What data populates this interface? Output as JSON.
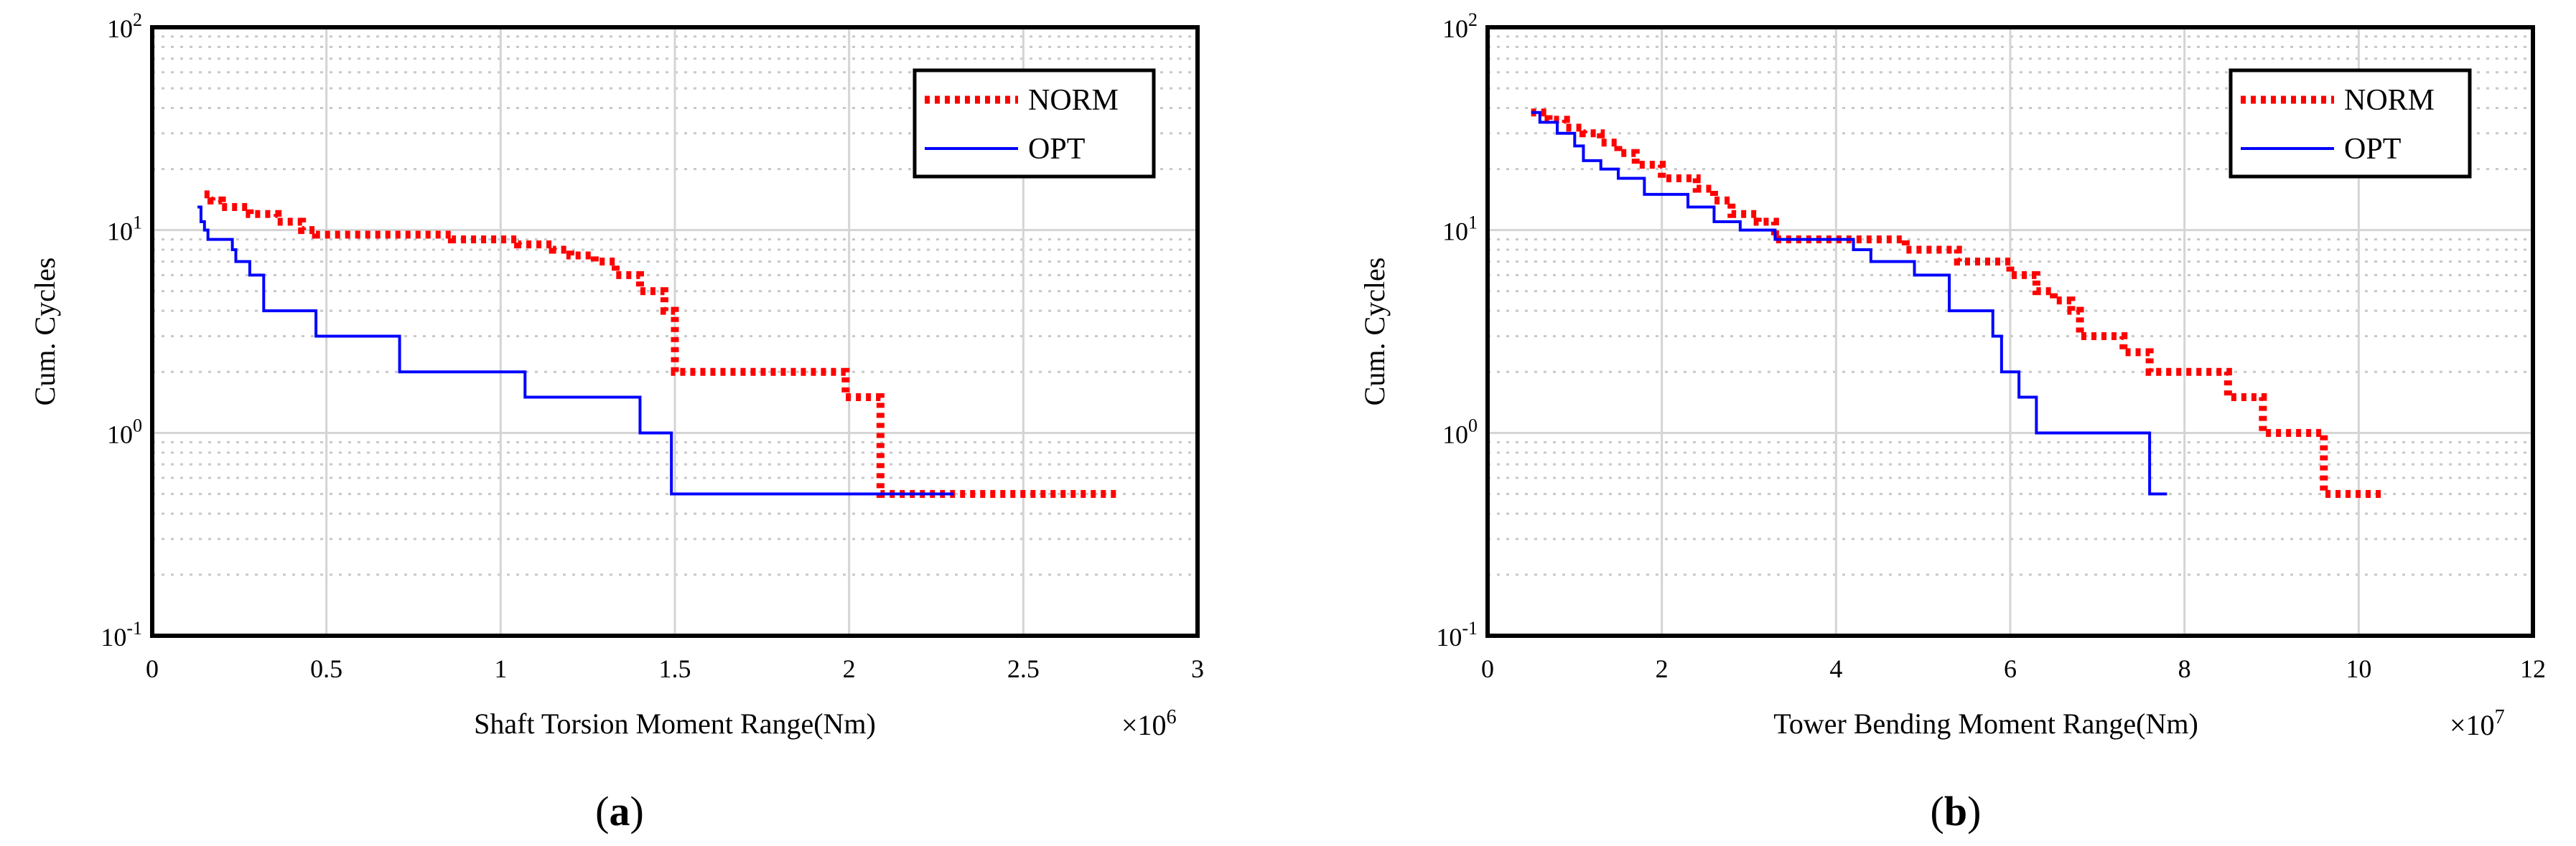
{
  "chart_data": [
    {
      "id": "a",
      "type": "line",
      "title": "",
      "xlabel": "Shaft Torsion Moment Range(Nm)",
      "ylabel": "Cum. Cycles",
      "x_multiplier_label": "×10",
      "x_multiplier_exp": "6",
      "y_scale": "log",
      "xlim": [
        0,
        3
      ],
      "ylim": [
        0.1,
        100
      ],
      "x_ticks": [
        {
          "value": 0,
          "label": "0"
        },
        {
          "value": 0.5,
          "label": "0.5"
        },
        {
          "value": 1,
          "label": "1"
        },
        {
          "value": 1.5,
          "label": "1.5"
        },
        {
          "value": 2,
          "label": "2"
        },
        {
          "value": 2.5,
          "label": "2.5"
        },
        {
          "value": 3,
          "label": "3"
        }
      ],
      "y_ticks": [
        {
          "value": 0.1,
          "base": "10",
          "exp": "-1"
        },
        {
          "value": 1,
          "base": "10",
          "exp": "0"
        },
        {
          "value": 10,
          "base": "10",
          "exp": "1"
        },
        {
          "value": 100,
          "base": "10",
          "exp": "2"
        }
      ],
      "legend_position": "top-right",
      "caption": "a",
      "series": [
        {
          "name": "NORM",
          "color": "#ff0000",
          "style": "dotted",
          "points": [
            [
              0.15,
              15
            ],
            [
              0.17,
              14
            ],
            [
              0.2,
              13
            ],
            [
              0.28,
              12
            ],
            [
              0.36,
              11
            ],
            [
              0.43,
              10
            ],
            [
              0.47,
              9.5
            ],
            [
              0.86,
              9
            ],
            [
              1.05,
              8.5
            ],
            [
              1.15,
              8
            ],
            [
              1.2,
              7.5
            ],
            [
              1.27,
              7
            ],
            [
              1.33,
              6
            ],
            [
              1.4,
              5
            ],
            [
              1.47,
              4
            ],
            [
              1.5,
              2
            ],
            [
              1.99,
              1.5
            ],
            [
              2.09,
              0.5
            ],
            [
              2.77,
              0.5
            ]
          ]
        },
        {
          "name": "OPT",
          "color": "#0000ff",
          "style": "solid",
          "points": [
            [
              0.13,
              13
            ],
            [
              0.14,
              11
            ],
            [
              0.15,
              10
            ],
            [
              0.16,
              9
            ],
            [
              0.23,
              8
            ],
            [
              0.24,
              7
            ],
            [
              0.28,
              6
            ],
            [
              0.32,
              4
            ],
            [
              0.47,
              3
            ],
            [
              0.71,
              2
            ],
            [
              1.07,
              1.5
            ],
            [
              1.4,
              1
            ],
            [
              1.49,
              0.5
            ],
            [
              2.3,
              0.5
            ]
          ]
        }
      ]
    },
    {
      "id": "b",
      "type": "line",
      "title": "",
      "xlabel": "Tower Bending Moment Range(Nm)",
      "ylabel": "Cum. Cycles",
      "x_multiplier_label": "×10",
      "x_multiplier_exp": "7",
      "y_scale": "log",
      "xlim": [
        0,
        12
      ],
      "ylim": [
        0.1,
        100
      ],
      "x_ticks": [
        {
          "value": 0,
          "label": "0"
        },
        {
          "value": 2,
          "label": "2"
        },
        {
          "value": 4,
          "label": "4"
        },
        {
          "value": 6,
          "label": "6"
        },
        {
          "value": 8,
          "label": "8"
        },
        {
          "value": 10,
          "label": "10"
        },
        {
          "value": 12,
          "label": "12"
        }
      ],
      "y_ticks": [
        {
          "value": 0.1,
          "base": "10",
          "exp": "-1"
        },
        {
          "value": 1,
          "base": "10",
          "exp": "0"
        },
        {
          "value": 10,
          "base": "10",
          "exp": "1"
        },
        {
          "value": 100,
          "base": "10",
          "exp": "2"
        }
      ],
      "legend_position": "top-right",
      "caption": "b",
      "series": [
        {
          "name": "NORM",
          "color": "#ff0000",
          "style": "dotted",
          "points": [
            [
              0.5,
              38
            ],
            [
              0.7,
              35
            ],
            [
              0.9,
              32
            ],
            [
              1.1,
              30
            ],
            [
              1.3,
              27
            ],
            [
              1.5,
              24
            ],
            [
              1.7,
              21
            ],
            [
              2.0,
              18
            ],
            [
              2.4,
              16
            ],
            [
              2.6,
              14
            ],
            [
              2.8,
              12
            ],
            [
              3.1,
              11
            ],
            [
              3.3,
              9
            ],
            [
              4.8,
              8
            ],
            [
              5.4,
              7
            ],
            [
              6.0,
              6
            ],
            [
              6.3,
              5
            ],
            [
              6.5,
              4.5
            ],
            [
              6.7,
              4
            ],
            [
              6.8,
              3
            ],
            [
              7.3,
              2.5
            ],
            [
              7.6,
              2
            ],
            [
              8.5,
              1.5
            ],
            [
              8.9,
              1
            ],
            [
              9.6,
              0.5
            ],
            [
              10.3,
              0.5
            ]
          ]
        },
        {
          "name": "OPT",
          "color": "#0000ff",
          "style": "solid",
          "points": [
            [
              0.5,
              38
            ],
            [
              0.6,
              34
            ],
            [
              0.8,
              30
            ],
            [
              1.0,
              26
            ],
            [
              1.1,
              22
            ],
            [
              1.3,
              20
            ],
            [
              1.5,
              18
            ],
            [
              1.8,
              15
            ],
            [
              2.3,
              13
            ],
            [
              2.6,
              11
            ],
            [
              2.9,
              10
            ],
            [
              3.3,
              9
            ],
            [
              4.2,
              8
            ],
            [
              4.4,
              7
            ],
            [
              4.9,
              6
            ],
            [
              5.3,
              4
            ],
            [
              5.8,
              3
            ],
            [
              5.9,
              2
            ],
            [
              6.1,
              1.5
            ],
            [
              6.3,
              1
            ],
            [
              7.6,
              0.5
            ],
            [
              7.8,
              0.5
            ]
          ]
        }
      ]
    }
  ]
}
